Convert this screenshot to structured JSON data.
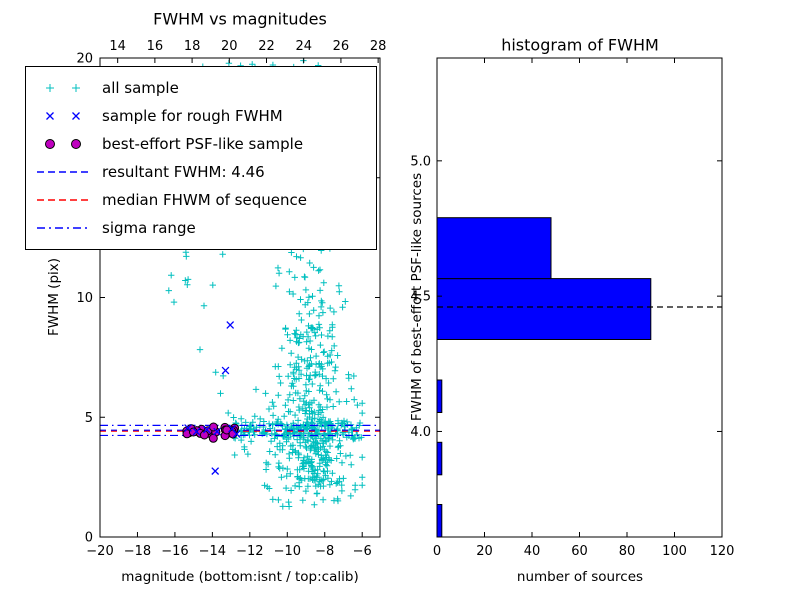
{
  "figure": {
    "background": "#ffffff"
  },
  "colors": {
    "all_sample": "#00bfbf",
    "rough_sample": "#0000ff",
    "psf_sample_fill": "#bf00bf",
    "psf_sample_edge": "#000000",
    "resultant_line": "#0000ff",
    "median_line": "#ff0000",
    "sigma_line": "#0000ff",
    "hist_fill": "#0000ff",
    "hist_edge": "#000000",
    "hist_median_line": "#000000",
    "axis": "#000000"
  },
  "legend": {
    "items": [
      {
        "label": "all sample",
        "marker": "plus",
        "color_key": "all_sample"
      },
      {
        "label": "sample for rough FWHM",
        "marker": "x",
        "color_key": "rough_sample"
      },
      {
        "label": "best-effort PSF-like sample",
        "marker": "circle",
        "color_key": "psf_sample_fill"
      },
      {
        "label": "resultant FWHM: 4.46",
        "marker": "dashed",
        "color_key": "resultant_line"
      },
      {
        "label": "median FHWM of sequence",
        "marker": "dashed",
        "color_key": "median_line"
      },
      {
        "label": "sigma range",
        "marker": "dashdot",
        "color_key": "sigma_line"
      }
    ]
  },
  "chart_data": [
    {
      "type": "scatter",
      "title": "FWHM vs magnitudes",
      "xlabel": "magnitude (bottom:isnt / top:calib)",
      "ylabel": "FWHM (pix)",
      "xlim": [
        -20,
        -5.05
      ],
      "ylim": [
        0,
        20
      ],
      "x_ticks": [
        -20,
        -18,
        -16,
        -14,
        -12,
        -10,
        -8,
        -6
      ],
      "x_tick_labels": [
        "−20",
        "−18",
        "−16",
        "−14",
        "−12",
        "−10",
        "−8",
        "−6"
      ],
      "y_ticks": [
        0,
        5,
        10,
        15,
        20
      ],
      "y_tick_labels": [
        "0",
        "5",
        "10",
        "15",
        "20"
      ],
      "top_axis": {
        "xlim": [
          13.05,
          28.1
        ],
        "ticks": [
          14,
          16,
          18,
          20,
          22,
          24,
          26,
          28
        ],
        "tick_labels": [
          "14",
          "16",
          "18",
          "20",
          "22",
          "24",
          "26",
          "28"
        ]
      },
      "lines": {
        "resultant_fwhm": 4.46,
        "median_fwhm": 4.42,
        "sigma_high": 4.66,
        "sigma_low": 4.24
      },
      "rough_fwhm_points": [
        [
          -15.3,
          4.55
        ],
        [
          -14.85,
          4.4
        ],
        [
          -14.3,
          4.48
        ],
        [
          -13.85,
          2.75
        ],
        [
          -13.75,
          4.4
        ],
        [
          -13.3,
          6.95
        ],
        [
          -13.05,
          8.85
        ],
        [
          -12.95,
          4.52
        ],
        [
          -12.7,
          4.3
        ]
      ],
      "psf_sample": {
        "n": 30,
        "x_min": -15.5,
        "x_max": -12.65,
        "y_mean": 4.44,
        "y_sd": 0.07,
        "outliers": [
          [
            -13.95,
            4.12
          ],
          [
            -12.9,
            4.3
          ]
        ]
      },
      "all_sample_clusters": [
        {
          "n": 150,
          "x": {
            "type": "uniform",
            "min": -12.9,
            "max": -6.0
          },
          "y": {
            "type": "normal",
            "mean": 4.45,
            "sd": 0.22,
            "min": 3.2,
            "max": 5.8
          }
        },
        {
          "n": 60,
          "x": {
            "type": "uniform",
            "min": -12.9,
            "max": -6.1
          },
          "y": {
            "type": "normal",
            "mean": 4.4,
            "sd": 0.7,
            "min": 2.4,
            "max": 6.8
          }
        },
        {
          "n": 330,
          "x": {
            "type": "normal",
            "mean": -8.6,
            "sd": 1.0,
            "min": -12.2,
            "max": -6.0
          },
          "y": {
            "type": "absnormal",
            "base": 2.1,
            "sd": 3.2,
            "min": 0.9,
            "max": 19.9
          }
        },
        {
          "n": 90,
          "x": {
            "type": "normal",
            "mean": -8.8,
            "sd": 0.95,
            "min": -11.8,
            "max": -6.2
          },
          "y": {
            "type": "uniform",
            "min": 6,
            "max": 13
          }
        },
        {
          "n": 60,
          "x": {
            "type": "normal",
            "mean": -8.8,
            "sd": 0.85,
            "min": -11.2,
            "max": -6.8
          },
          "y": {
            "type": "uniform",
            "min": 13,
            "max": 19.9
          }
        },
        {
          "n": 7,
          "x": {
            "type": "uniform",
            "min": -15.0,
            "max": -7.5
          },
          "y": {
            "type": "uniform",
            "min": 19.3,
            "max": 19.95
          }
        },
        {
          "n": 13,
          "x": {
            "type": "uniform",
            "min": -16.4,
            "max": -13.1
          },
          "y": {
            "type": "uniform",
            "min": 4.9,
            "max": 12.8
          }
        },
        {
          "n": 7,
          "x": {
            "type": "normal",
            "mean": -15.35,
            "sd": 0.07
          },
          "y": {
            "type": "uniform",
            "min": 10.3,
            "max": 12.7
          }
        },
        {
          "n": 22,
          "x": {
            "type": "uniform",
            "min": -11.3,
            "max": -6.3
          },
          "y": {
            "type": "uniform",
            "min": 1.2,
            "max": 2.2
          }
        }
      ],
      "seed": 11
    },
    {
      "type": "bar",
      "orientation": "horizontal",
      "title": "histogram of FWHM",
      "xlabel": "number of sources",
      "ylabel": "FWHM of best-effort PSF-like sources",
      "xlim": [
        0,
        120
      ],
      "ylim": [
        3.61,
        5.38
      ],
      "x_ticks": [
        0,
        20,
        40,
        60,
        80,
        100,
        120
      ],
      "x_tick_labels": [
        "0",
        "20",
        "40",
        "60",
        "80",
        "100",
        "120"
      ],
      "y_ticks": [
        4.0,
        4.5,
        5.0
      ],
      "y_tick_labels": [
        "4.0",
        "4.5",
        "5.0"
      ],
      "bars": [
        {
          "y0": 3.61,
          "y1": 3.73,
          "count": 2
        },
        {
          "y0": 3.84,
          "y1": 3.96,
          "count": 2
        },
        {
          "y0": 4.07,
          "y1": 4.19,
          "count": 2
        },
        {
          "y0": 4.34,
          "y1": 4.565,
          "count": 90
        },
        {
          "y0": 4.565,
          "y1": 4.79,
          "count": 48
        }
      ],
      "median_fwhm_line": 4.46
    }
  ]
}
